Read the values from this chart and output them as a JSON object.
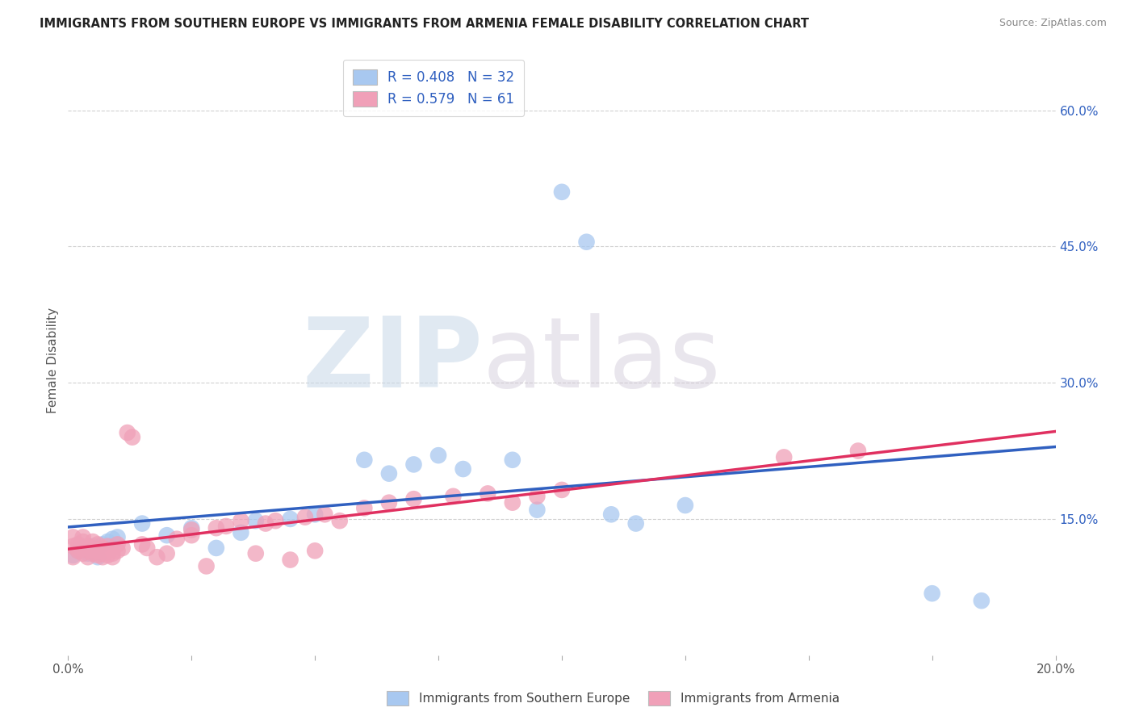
{
  "title": "IMMIGRANTS FROM SOUTHERN EUROPE VS IMMIGRANTS FROM ARMENIA FEMALE DISABILITY CORRELATION CHART",
  "source": "Source: ZipAtlas.com",
  "ylabel": "Female Disability",
  "xlim": [
    0.0,
    0.2
  ],
  "ylim": [
    0.0,
    0.65
  ],
  "xticks": [
    0.0,
    0.025,
    0.05,
    0.075,
    0.1,
    0.125,
    0.15,
    0.175,
    0.2
  ],
  "yticks_right": [
    0.0,
    0.15,
    0.3,
    0.45,
    0.6
  ],
  "ytick_gridlines": [
    0.15,
    0.3,
    0.45,
    0.6
  ],
  "R_blue": 0.408,
  "N_blue": 32,
  "R_pink": 0.579,
  "N_pink": 61,
  "legend_label_blue": "Immigrants from Southern Europe",
  "legend_label_pink": "Immigrants from Armenia",
  "dot_color_blue": "#a8c8f0",
  "dot_color_pink": "#f0a0b8",
  "line_color_blue": "#3060c0",
  "line_color_pink": "#e03060",
  "watermark_zip": "ZIP",
  "watermark_atlas": "atlas",
  "background_color": "#ffffff",
  "grid_color": "#d0d0d0",
  "blue_scatter_x": [
    0.001,
    0.002,
    0.003,
    0.004,
    0.005,
    0.006,
    0.007,
    0.008,
    0.009,
    0.01,
    0.015,
    0.02,
    0.025,
    0.03,
    0.035,
    0.038,
    0.045,
    0.05,
    0.06,
    0.065,
    0.07,
    0.075,
    0.08,
    0.09,
    0.095,
    0.1,
    0.105,
    0.11,
    0.115,
    0.125,
    0.175,
    0.185
  ],
  "blue_scatter_y": [
    0.11,
    0.115,
    0.118,
    0.112,
    0.12,
    0.108,
    0.122,
    0.125,
    0.128,
    0.13,
    0.145,
    0.132,
    0.14,
    0.118,
    0.135,
    0.148,
    0.15,
    0.155,
    0.215,
    0.2,
    0.21,
    0.22,
    0.205,
    0.215,
    0.16,
    0.51,
    0.455,
    0.155,
    0.145,
    0.165,
    0.068,
    0.06
  ],
  "pink_scatter_x": [
    0.001,
    0.001,
    0.001,
    0.002,
    0.002,
    0.002,
    0.003,
    0.003,
    0.003,
    0.003,
    0.004,
    0.004,
    0.004,
    0.005,
    0.005,
    0.005,
    0.006,
    0.006,
    0.006,
    0.007,
    0.007,
    0.007,
    0.008,
    0.008,
    0.008,
    0.009,
    0.009,
    0.01,
    0.01,
    0.011,
    0.012,
    0.013,
    0.015,
    0.016,
    0.018,
    0.02,
    0.022,
    0.025,
    0.025,
    0.028,
    0.03,
    0.032,
    0.035,
    0.038,
    0.04,
    0.042,
    0.045,
    0.048,
    0.05,
    0.052,
    0.055,
    0.06,
    0.065,
    0.07,
    0.078,
    0.085,
    0.09,
    0.095,
    0.1,
    0.145,
    0.16
  ],
  "pink_scatter_y": [
    0.12,
    0.13,
    0.108,
    0.115,
    0.122,
    0.118,
    0.112,
    0.118,
    0.125,
    0.13,
    0.115,
    0.12,
    0.108,
    0.112,
    0.118,
    0.125,
    0.11,
    0.115,
    0.122,
    0.108,
    0.112,
    0.118,
    0.11,
    0.115,
    0.12,
    0.108,
    0.112,
    0.115,
    0.122,
    0.118,
    0.245,
    0.24,
    0.122,
    0.118,
    0.108,
    0.112,
    0.128,
    0.132,
    0.138,
    0.098,
    0.14,
    0.142,
    0.148,
    0.112,
    0.145,
    0.148,
    0.105,
    0.152,
    0.115,
    0.155,
    0.148,
    0.162,
    0.168,
    0.172,
    0.175,
    0.178,
    0.168,
    0.175,
    0.182,
    0.218,
    0.225
  ]
}
